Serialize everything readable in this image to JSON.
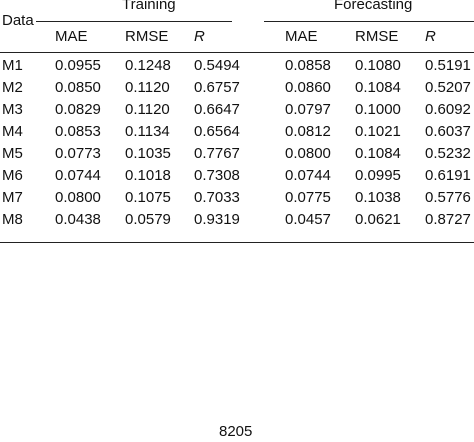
{
  "table": {
    "header": "Data",
    "groups": [
      "Training",
      "Forecasting"
    ],
    "columns": [
      "MAE",
      "RMSE",
      "R",
      "MAE",
      "RMSE",
      "R"
    ],
    "rows": [
      [
        "M1",
        "0.0955",
        "0.1248",
        "0.5494",
        "0.0858",
        "0.1080",
        "0.5191"
      ],
      [
        "M2",
        "0.0850",
        "0.1120",
        "0.6757",
        "0.0860",
        "0.1084",
        "0.5207"
      ],
      [
        "M3",
        "0.0829",
        "0.1120",
        "0.6647",
        "0.0797",
        "0.1000",
        "0.6092"
      ],
      [
        "M4",
        "0.0853",
        "0.1134",
        "0.6564",
        "0.0812",
        "0.1021",
        "0.6037"
      ],
      [
        "M5",
        "0.0773",
        "0.1035",
        "0.7767",
        "0.0800",
        "0.1084",
        "0.5232"
      ],
      [
        "M6",
        "0.0744",
        "0.1018",
        "0.7308",
        "0.0744",
        "0.0995",
        "0.6191"
      ],
      [
        "M7",
        "0.0800",
        "0.1075",
        "0.7033",
        "0.0775",
        "0.1038",
        "0.5776"
      ],
      [
        "M8",
        "0.0438",
        "0.0579",
        "0.9319",
        "0.0457",
        "0.0621",
        "0.8727"
      ]
    ]
  },
  "page_number": "8205"
}
